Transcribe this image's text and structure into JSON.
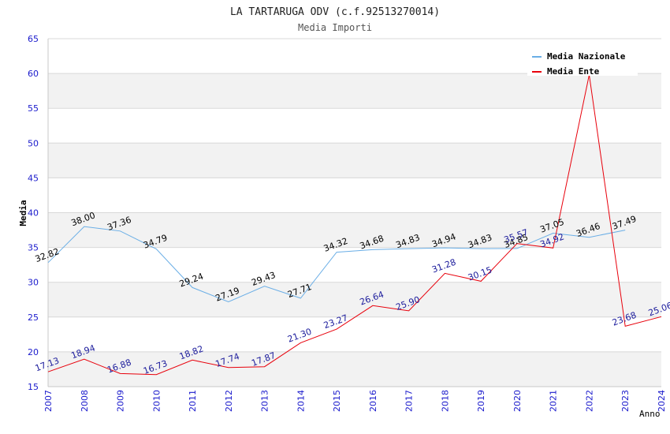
{
  "chart_data": {
    "type": "line",
    "title": "LA TARTARUGA ODV (c.f.92513270014)",
    "subtitle": "Media Importi",
    "xlabel": "Anno",
    "ylabel": "Media",
    "ylim": [
      15,
      65
    ],
    "yticks": [
      "15",
      "20",
      "25",
      "30",
      "35",
      "40",
      "45",
      "50",
      "55",
      "60",
      "65"
    ],
    "grid": true,
    "legend_position": "top-right",
    "categories": [
      "2007",
      "2008",
      "2009",
      "2010",
      "2011",
      "2012",
      "2013",
      "2014",
      "2015",
      "2016",
      "2017",
      "2018",
      "2019",
      "2020",
      "2021",
      "2022",
      "2023",
      "2024"
    ],
    "series": [
      {
        "name": "Media Nazionale",
        "color": "#6aaee6",
        "label_color": "#000000",
        "values": [
          32.82,
          38.0,
          37.36,
          34.79,
          29.24,
          27.19,
          29.43,
          27.71,
          34.32,
          34.68,
          34.83,
          34.94,
          34.83,
          34.85,
          37.05,
          36.46,
          37.49,
          null
        ],
        "labels": [
          "32.82",
          "38.00",
          "37.36",
          "34.79",
          "29.24",
          "27.19",
          "29.43",
          "27.71",
          "34.32",
          "34.68",
          "34.83",
          "34.94",
          "34.83",
          "34.85",
          "37.05",
          "36.46",
          "37.49",
          ""
        ]
      },
      {
        "name": "Media Ente",
        "color": "#e8000b",
        "label_color": "#1c1c9c",
        "values": [
          17.13,
          18.94,
          16.88,
          16.73,
          18.82,
          17.74,
          17.87,
          21.3,
          23.27,
          26.64,
          25.9,
          31.28,
          30.15,
          35.57,
          34.92,
          59.8,
          23.68,
          25.06
        ],
        "labels": [
          "17.13",
          "18.94",
          "16.88",
          "16.73",
          "18.82",
          "17.74",
          "17.87",
          "21.30",
          "23.27",
          "26.64",
          "25.90",
          "31.28",
          "30.15",
          "35.57",
          "34.92",
          "",
          "23.68",
          "25.06"
        ]
      }
    ]
  }
}
